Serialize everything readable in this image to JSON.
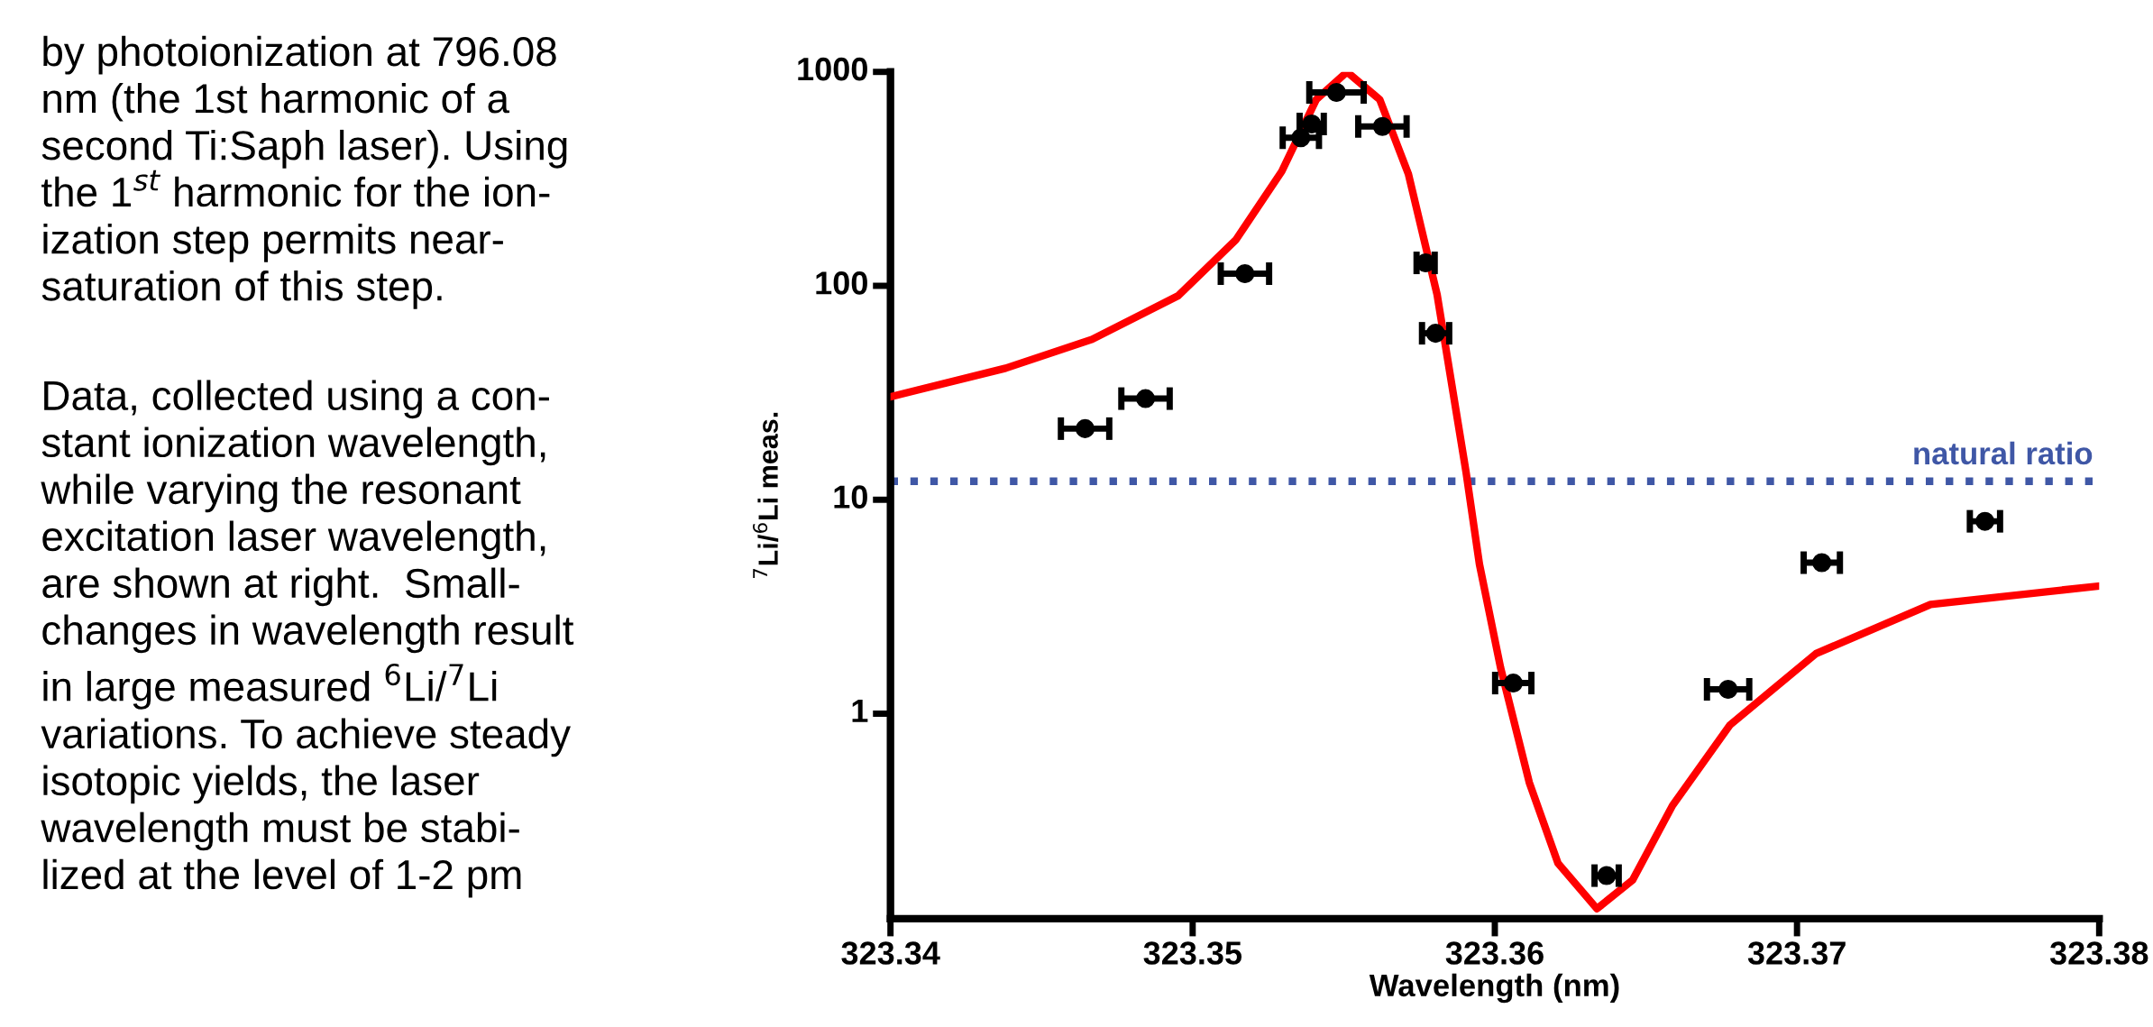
{
  "chart_data": {
    "type": "scatter",
    "xlabel": "Wavelength (nm)",
    "ylabel": "$^{7}$Li/$^{6}$Li meas.",
    "log": "y",
    "xlim": [
      323.34,
      323.38
    ],
    "xticks": [
      323.34,
      323.35,
      323.36,
      323.37,
      323.38
    ],
    "ylim": [
      0.11,
      1000
    ],
    "yticks": [
      1,
      10,
      100,
      1000
    ],
    "grid": false,
    "legend": false,
    "series": [
      {
        "color": "#000000",
        "marker": "circle",
        "x": [
          323.34644,
          323.34844,
          323.35173,
          323.35358,
          323.35394,
          323.35476,
          323.35628,
          323.35771,
          323.35804,
          323.36061,
          323.3637,
          323.36772,
          323.37082,
          323.37622
        ],
        "values": [
          21.5,
          29.7,
          114,
          492,
          571,
          802,
          556,
          128,
          60,
          1.39,
          0.175,
          1.3,
          5.08,
          7.93
        ],
        "xerrors": [
          0.0008,
          0.0008,
          0.0008,
          0.0006,
          0.0004,
          0.0009,
          0.0008,
          0.0003,
          0.00045,
          0.0006,
          0.0004,
          0.0007,
          0.0006,
          0.0005
        ]
      },
      {
        "type": "line",
        "color": "#ff0000",
        "line_style": "solid",
        "marker": "none",
        "x": [
          323.34,
          323.34381,
          323.34667,
          323.34952,
          323.35143,
          323.35295,
          323.35409,
          323.35511,
          323.35619,
          323.35714,
          323.35809,
          323.35905,
          323.35949,
          323.36019,
          323.36114,
          323.36209,
          323.36338,
          323.36456,
          323.36588,
          323.36778,
          323.37063,
          323.37442,
          323.37992
        ],
        "values": [
          30.3,
          41.2,
          56.2,
          89.8,
          164,
          343,
          743,
          1000,
          743,
          333,
          91,
          13.4,
          5.0,
          1.64,
          0.477,
          0.2,
          0.1225,
          0.167,
          0.372,
          0.885,
          1.91,
          3.24,
          3.94
        ]
      }
    ],
    "ref_lines": [
      {
        "axis": "y",
        "value": 12.2,
        "label": "natural ratio",
        "color": "#3f57a6",
        "line_style": "dotted"
      }
    ],
    "annotations": [
      "by photoionization at 796.08\nnm (the 1st harmonic of a\nsecond Ti:Saph laser). Using\nthe 1$^{st}$ harmonic for the ion-\nization step permits near-\nsaturation of this step.",
      "Data, collected using a con-\nstant ionization wavelength,\nwhile varying the resonant\nexcitation laser wavelength,\nare shown at right.  Small-\nchanges in wavelength result\nin large measured $^{6}$Li/$^{7}$Li\nvariations. To achieve steady\nisotopic yields, the laser\nwavelength must be stabi-\nlized at the level of 1-2 pm"
    ]
  }
}
